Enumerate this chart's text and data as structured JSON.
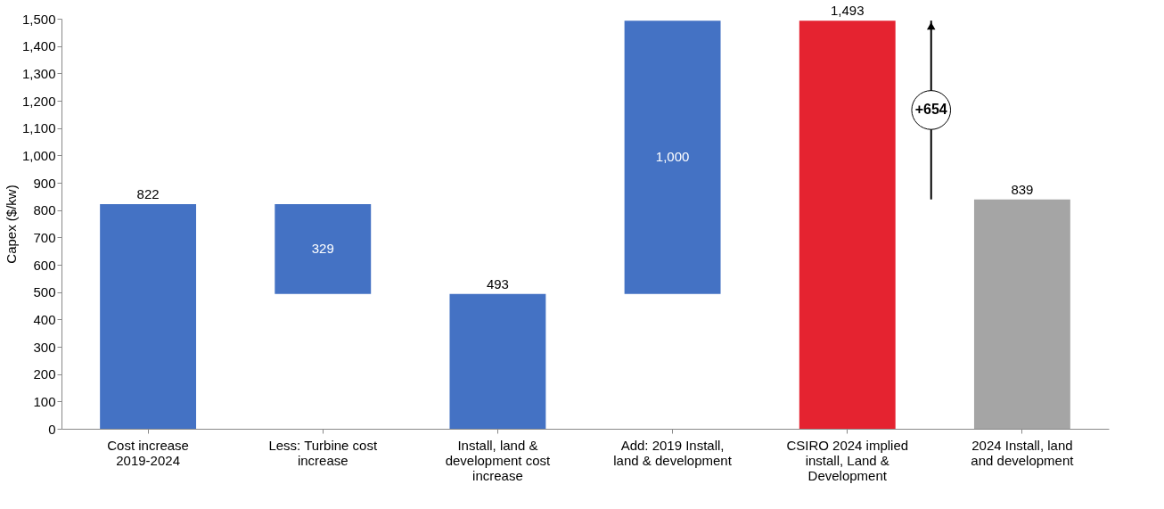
{
  "chart_data": {
    "type": "bar",
    "ylabel": "Capex ($/kw)",
    "categories": [
      "Cost increase 2019-2024",
      "Less: Turbine cost increase",
      "Install, land & development cost increase",
      "Add: 2019 Install, land & development",
      "CSIRO 2024 implied install, Land & Development",
      "2024 Install, land and development"
    ],
    "values": [
      822,
      329,
      493,
      1000,
      1493,
      839
    ],
    "base": [
      0,
      493,
      0,
      493,
      0,
      0
    ],
    "colors": [
      "#4472c4",
      "#4472c4",
      "#4472c4",
      "#4472c4",
      "#e52330",
      "#a5a5a5"
    ],
    "value_labels": [
      "822",
      "329",
      "493",
      "1,000",
      "1,493",
      "839"
    ],
    "ylim": [
      0,
      1500
    ],
    "yticks": [
      {
        "value": 0,
        "label": "0"
      },
      {
        "value": 100,
        "label": "100"
      },
      {
        "value": 200,
        "label": "200"
      },
      {
        "value": 300,
        "label": "300"
      },
      {
        "value": 400,
        "label": "400"
      },
      {
        "value": 500,
        "label": "500"
      },
      {
        "value": 600,
        "label": "600"
      },
      {
        "value": 700,
        "label": "700"
      },
      {
        "value": 800,
        "label": "800"
      },
      {
        "value": 900,
        "label": "900"
      },
      {
        "value": 1000,
        "label": "1,000"
      },
      {
        "value": 1100,
        "label": "1,100"
      },
      {
        "value": 1200,
        "label": "1,200"
      },
      {
        "value": 1300,
        "label": "1,300"
      },
      {
        "value": 1400,
        "label": "1,400"
      },
      {
        "value": 1500,
        "label": "1,500"
      }
    ],
    "annotations": [
      "+654"
    ],
    "grid": false
  }
}
